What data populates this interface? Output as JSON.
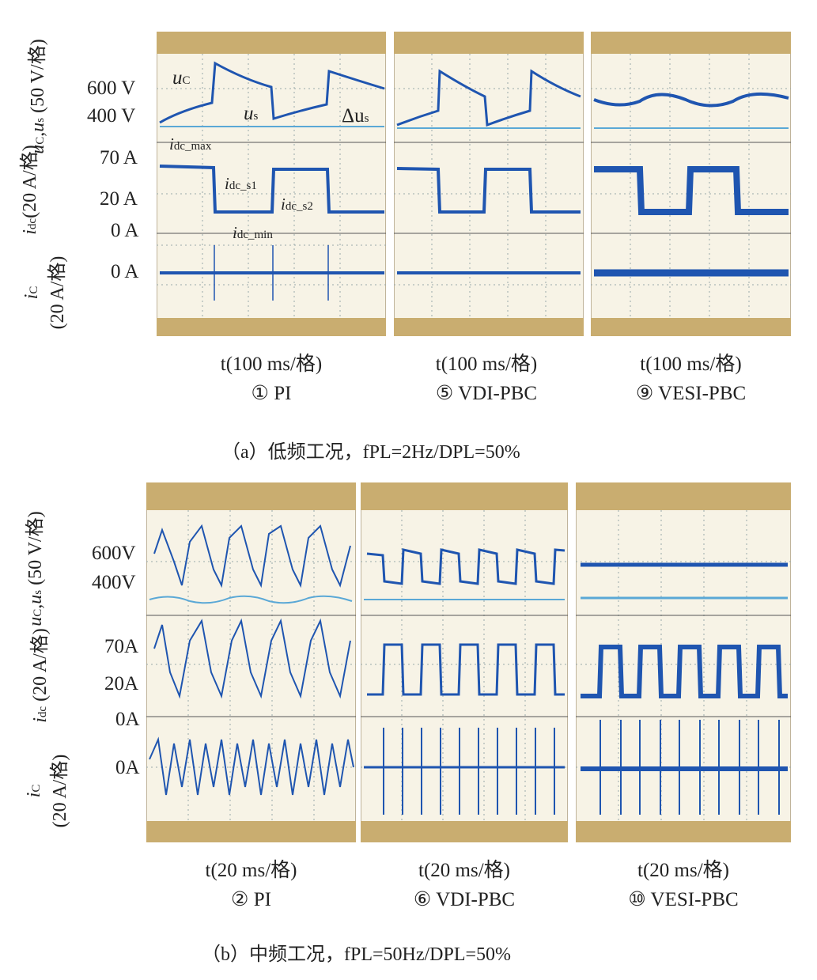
{
  "part_a": {
    "y_axis": {
      "uc_us": {
        "name": "u_C,u_s",
        "unit": "(50 V/格)"
      },
      "idc": {
        "name": "i_dc",
        "unit": "(20 A/格)"
      },
      "ic": {
        "name": "i_C",
        "unit": "(20 A/格)"
      }
    },
    "ticks": [
      "600 V",
      "400 V",
      "70 A",
      "20 A",
      "0 A",
      "0 A"
    ],
    "annotations": {
      "uC": "u",
      "uC_sub": "C",
      "us": "u",
      "us_sub": "s",
      "delta": "Δu",
      "delta_sub": "s",
      "idc_max": "i",
      "idc_max_sub": "dc_max",
      "idc_s1": "i",
      "idc_s1_sub": "dc_s1",
      "idc_s2": "i",
      "idc_s2_sub": "dc_s2",
      "idc_min": "i",
      "idc_min_sub": "dc_min"
    },
    "scopes": [
      {
        "time": "t(100 ms/格)",
        "label": "① PI"
      },
      {
        "time": "t(100 ms/格)",
        "label": "⑤ VDI-PBC"
      },
      {
        "time": "t(100 ms/格)",
        "label": "⑨ VESI-PBC"
      }
    ],
    "caption": "（a）低频工况，fPL=2Hz/DPL=50%"
  },
  "part_b": {
    "ticks": [
      "600V",
      "400V",
      "70A",
      "20A",
      "0A",
      "0A"
    ],
    "scopes": [
      {
        "time": "t(20 ms/格)",
        "label": "② PI"
      },
      {
        "time": "t(20 ms/格)",
        "label": "⑥ VDI-PBC"
      },
      {
        "time": "t(20 ms/格)",
        "label": "⑩ VESI-PBC"
      }
    ],
    "caption": "（b）中频工况，fPL=50Hz/DPL=50%"
  },
  "colors": {
    "trace_dark": "#1f55b0",
    "trace_light": "#5aa8d6",
    "frame_top": "#b89b5e",
    "frame_bg": "#f5f0e1"
  }
}
